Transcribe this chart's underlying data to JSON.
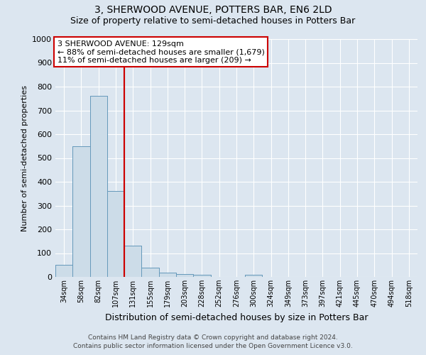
{
  "title": "3, SHERWOOD AVENUE, POTTERS BAR, EN6 2LD",
  "subtitle": "Size of property relative to semi-detached houses in Potters Bar",
  "xlabel": "Distribution of semi-detached houses by size in Potters Bar",
  "ylabel": "Number of semi-detached properties",
  "footer_line1": "Contains HM Land Registry data © Crown copyright and database right 2024.",
  "footer_line2": "Contains public sector information licensed under the Open Government Licence v3.0.",
  "categories": [
    "34sqm",
    "58sqm",
    "82sqm",
    "107sqm",
    "131sqm",
    "155sqm",
    "179sqm",
    "203sqm",
    "228sqm",
    "252sqm",
    "276sqm",
    "300sqm",
    "324sqm",
    "349sqm",
    "373sqm",
    "397sqm",
    "421sqm",
    "445sqm",
    "470sqm",
    "494sqm",
    "518sqm"
  ],
  "values": [
    50,
    550,
    760,
    360,
    130,
    40,
    18,
    12,
    10,
    0,
    0,
    10,
    0,
    0,
    0,
    0,
    0,
    0,
    0,
    0,
    0
  ],
  "bar_color": "#ccdce8",
  "bar_edge_color": "#6699bb",
  "red_line_x": 3.5,
  "annotation_text_line1": "3 SHERWOOD AVENUE: 129sqm",
  "annotation_text_line2": "← 88% of semi-detached houses are smaller (1,679)",
  "annotation_text_line3": "11% of semi-detached houses are larger (209) →",
  "ylim": [
    0,
    1000
  ],
  "yticks": [
    0,
    100,
    200,
    300,
    400,
    500,
    600,
    700,
    800,
    900,
    1000
  ],
  "bg_color": "#dce6f0",
  "plot_bg_color": "#dce6f0",
  "grid_color": "#ffffff",
  "annotation_box_facecolor": "#ffffff",
  "annotation_box_edgecolor": "#cc0000",
  "red_line_color": "#cc0000",
  "title_fontsize": 10,
  "subtitle_fontsize": 9,
  "ylabel_fontsize": 8,
  "xlabel_fontsize": 9,
  "ytick_fontsize": 8,
  "xtick_fontsize": 7,
  "footer_fontsize": 6.5,
  "ann_fontsize": 8
}
